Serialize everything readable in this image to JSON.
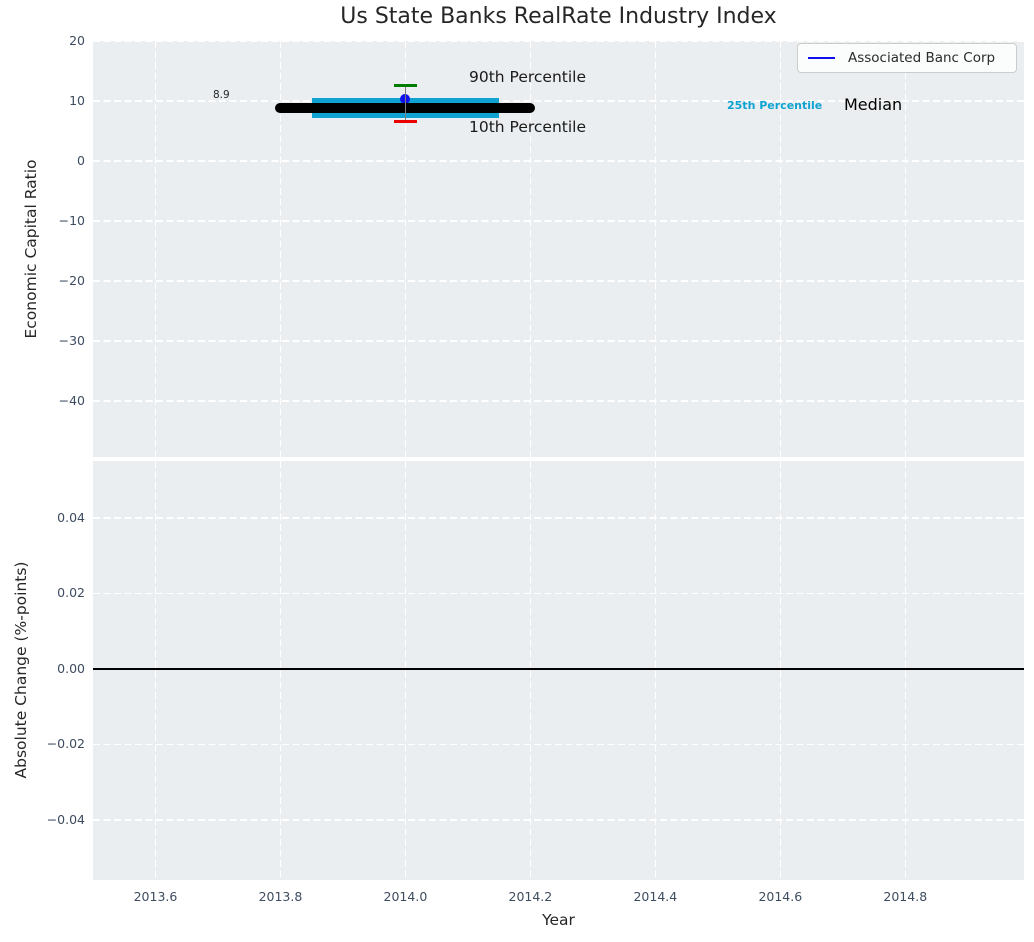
{
  "title": "Us State Banks RealRate Industry Index",
  "colors": {
    "figure_background": "#ffffff",
    "axes_background": "#ebeef0",
    "grid": "#ffffff",
    "tick_label": "#3e4c60",
    "text": "#262626",
    "median_line": "#000000",
    "percentile_25_line": "#0fa3d2",
    "company_marker": "#1010ee",
    "percentile_90_cap": "#007d00",
    "percentile_10_cap": "#ea0000",
    "errorbar_stem": "#7f7f7f",
    "zero_line": "#000000"
  },
  "chart_data": [
    {
      "type": "line",
      "title": "Us State Banks RealRate Industry Index",
      "ylabel": "Economic Capital Ratio",
      "xlim": [
        2013.5,
        2014.99
      ],
      "ylim": [
        -49.3,
        20
      ],
      "grid": true,
      "legend_position": "upper right",
      "yticks": [
        {
          "v": 20,
          "label": "20"
        },
        {
          "v": 10,
          "label": "10"
        },
        {
          "v": 0,
          "label": "0"
        },
        {
          "v": -10,
          "label": "−10"
        },
        {
          "v": -20,
          "label": "−20"
        },
        {
          "v": -30,
          "label": "−30"
        },
        {
          "v": -40,
          "label": "−40"
        }
      ],
      "xticks": [
        {
          "v": 2013.6,
          "label": "2013.6"
        },
        {
          "v": 2013.8,
          "label": "2013.8"
        },
        {
          "v": 2014.0,
          "label": "2014.0"
        },
        {
          "v": 2014.2,
          "label": "2014.2"
        },
        {
          "v": 2014.4,
          "label": "2014.4"
        },
        {
          "v": 2014.6,
          "label": "2014.6"
        },
        {
          "v": 2014.8,
          "label": "2014.8"
        }
      ],
      "series": [
        {
          "name": "25th Percentile",
          "type": "hline",
          "y": 8.9,
          "x_start": 2013.85,
          "x_end": 2014.15,
          "color": "#0fa3d2",
          "linewidth": 20,
          "linecap": "butt"
        },
        {
          "name": "Associated Banc Corp",
          "type": "point",
          "x": 2014.0,
          "y": 10.4,
          "color": "#1010ee",
          "size": 10
        },
        {
          "name": "Median",
          "type": "hline",
          "y": 8.9,
          "x_start": 2013.8,
          "x_end": 2014.2,
          "color": "#000000",
          "linewidth": 10,
          "linecap": "round",
          "value_label": "8.9"
        },
        {
          "name": "errorbar stem",
          "type": "vline",
          "x": 2014.0,
          "y_start": 6.6,
          "y_end": 12.6,
          "color": "#7f7f7f",
          "linewidth": 1.5
        },
        {
          "name": "90th Percentile",
          "type": "cap",
          "x": 2014.0,
          "y": 12.6,
          "color": "#007d00",
          "cap_width": 23,
          "linewidth": 2.5
        },
        {
          "name": "10th Percentile",
          "type": "cap",
          "x": 2014.0,
          "y": 6.6,
          "color": "#ea0000",
          "cap_width": 23,
          "linewidth": 2.5
        }
      ],
      "annotations": [
        {
          "text": "8.9",
          "color": "#262626"
        },
        {
          "text": "90th Percentile",
          "color": "#1a1a1a"
        },
        {
          "text": "10th Percentile",
          "color": "#1a1a1a"
        },
        {
          "text": "25th Percentile",
          "color": "#0fa3d2"
        },
        {
          "text": "Median",
          "color": "#000000"
        }
      ],
      "legend": {
        "entries": [
          {
            "label": "Associated Banc Corp",
            "color": "#1010ee"
          }
        ]
      }
    },
    {
      "type": "line",
      "ylabel": "Absolute Change (%-points)",
      "xlabel": "Year",
      "xlim": [
        2013.5,
        2014.99
      ],
      "ylim": [
        -0.0559,
        0.0551
      ],
      "grid": true,
      "yticks": [
        {
          "v": 0.04,
          "label": "0.04"
        },
        {
          "v": 0.02,
          "label": "0.02"
        },
        {
          "v": 0,
          "label": "0.00"
        },
        {
          "v": -0.02,
          "label": "−0.02"
        },
        {
          "v": -0.04,
          "label": "−0.04"
        }
      ],
      "xticks": [
        {
          "v": 2013.6,
          "label": "2013.6"
        },
        {
          "v": 2013.8,
          "label": "2013.8"
        },
        {
          "v": 2014.0,
          "label": "2014.0"
        },
        {
          "v": 2014.2,
          "label": "2014.2"
        },
        {
          "v": 2014.4,
          "label": "2014.4"
        },
        {
          "v": 2014.6,
          "label": "2014.6"
        },
        {
          "v": 2014.8,
          "label": "2014.8"
        }
      ],
      "series": [
        {
          "name": "zero line",
          "type": "hline",
          "y": 0,
          "x_start": 2013.5,
          "x_end": 2014.99,
          "color": "#000000",
          "linewidth": 2,
          "linecap": "butt"
        }
      ]
    }
  ]
}
